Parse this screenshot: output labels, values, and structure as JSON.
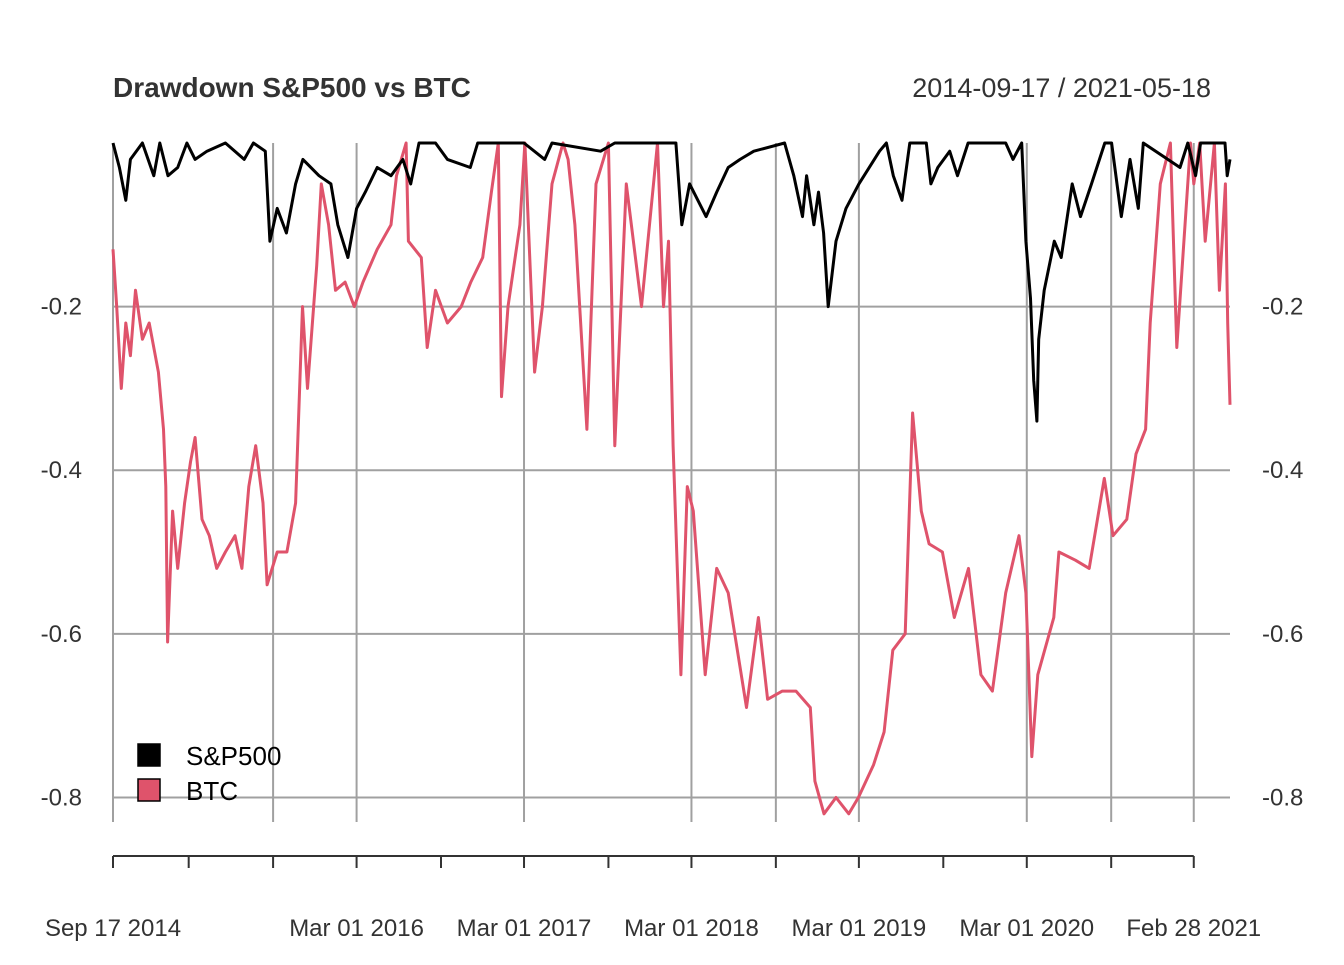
{
  "chart_data": {
    "type": "line",
    "title": "Drawdown S&P500 vs BTC",
    "date_range_label": "2014-09-17 / 2021-05-18",
    "xlabel": "",
    "ylabel": "",
    "x_start": "2014-09-17",
    "x_end": "2021-05-18",
    "ylim": [
      -0.83,
      0.0
    ],
    "grid": true,
    "legend_position": "bottom-left",
    "y_ticks": [
      {
        "value": -0.2,
        "label": "-0.2"
      },
      {
        "value": -0.4,
        "label": "-0.4"
      },
      {
        "value": -0.6,
        "label": "-0.6"
      },
      {
        "value": -0.8,
        "label": "-0.8"
      }
    ],
    "x_tick_marks": [
      "2014-09-17",
      "2015-03-01",
      "2015-09-01",
      "2016-03-01",
      "2016-09-01",
      "2017-03-01",
      "2017-09-01",
      "2018-03-01",
      "2018-09-01",
      "2019-03-01",
      "2019-09-01",
      "2020-03-01",
      "2020-09-01",
      "2021-02-28"
    ],
    "x_gridlines": [
      "2014-09-17",
      "2015-09-01",
      "2016-03-01",
      "2017-03-01",
      "2018-03-01",
      "2018-09-01",
      "2019-03-01",
      "2020-03-01",
      "2020-09-01",
      "2021-02-28"
    ],
    "x_labels": [
      {
        "date": "2014-09-17",
        "label": "Sep 17 2014"
      },
      {
        "date": "2016-03-01",
        "label": "Mar 01 2016"
      },
      {
        "date": "2017-03-01",
        "label": "Mar 01 2017"
      },
      {
        "date": "2018-03-01",
        "label": "Mar 01 2018"
      },
      {
        "date": "2019-03-01",
        "label": "Mar 01 2019"
      },
      {
        "date": "2020-03-01",
        "label": "Mar 01 2020"
      },
      {
        "date": "2021-02-28",
        "label": "Feb 28 2021"
      }
    ],
    "series": [
      {
        "name": "S&P500",
        "color": "#000000",
        "points": [
          [
            "2014-09-17",
            0.0
          ],
          [
            "2014-10-01",
            -0.03
          ],
          [
            "2014-10-15",
            -0.07
          ],
          [
            "2014-10-25",
            -0.02
          ],
          [
            "2014-11-20",
            0.0
          ],
          [
            "2014-12-15",
            -0.04
          ],
          [
            "2014-12-28",
            0.0
          ],
          [
            "2015-01-15",
            -0.04
          ],
          [
            "2015-02-05",
            -0.03
          ],
          [
            "2015-02-25",
            0.0
          ],
          [
            "2015-03-15",
            -0.02
          ],
          [
            "2015-04-10",
            -0.01
          ],
          [
            "2015-05-20",
            0.0
          ],
          [
            "2015-06-30",
            -0.02
          ],
          [
            "2015-07-20",
            0.0
          ],
          [
            "2015-08-15",
            -0.01
          ],
          [
            "2015-08-25",
            -0.12
          ],
          [
            "2015-09-10",
            -0.08
          ],
          [
            "2015-09-30",
            -0.11
          ],
          [
            "2015-10-20",
            -0.05
          ],
          [
            "2015-11-05",
            -0.02
          ],
          [
            "2015-12-10",
            -0.04
          ],
          [
            "2016-01-05",
            -0.05
          ],
          [
            "2016-01-20",
            -0.1
          ],
          [
            "2016-02-11",
            -0.14
          ],
          [
            "2016-03-01",
            -0.08
          ],
          [
            "2016-03-20",
            -0.06
          ],
          [
            "2016-04-15",
            -0.03
          ],
          [
            "2016-05-15",
            -0.04
          ],
          [
            "2016-06-10",
            -0.02
          ],
          [
            "2016-06-27",
            -0.05
          ],
          [
            "2016-07-15",
            0.0
          ],
          [
            "2016-08-20",
            0.0
          ],
          [
            "2016-09-15",
            -0.02
          ],
          [
            "2016-11-04",
            -0.03
          ],
          [
            "2016-11-20",
            0.0
          ],
          [
            "2017-02-01",
            0.0
          ],
          [
            "2017-03-01",
            0.0
          ],
          [
            "2017-04-15",
            -0.02
          ],
          [
            "2017-05-01",
            0.0
          ],
          [
            "2017-08-15",
            -0.01
          ],
          [
            "2017-09-15",
            0.0
          ],
          [
            "2018-01-26",
            0.0
          ],
          [
            "2018-02-08",
            -0.1
          ],
          [
            "2018-02-25",
            -0.05
          ],
          [
            "2018-04-02",
            -0.09
          ],
          [
            "2018-04-25",
            -0.06
          ],
          [
            "2018-05-20",
            -0.03
          ],
          [
            "2018-06-15",
            -0.02
          ],
          [
            "2018-07-15",
            -0.01
          ],
          [
            "2018-09-20",
            0.0
          ],
          [
            "2018-10-10",
            -0.04
          ],
          [
            "2018-10-29",
            -0.09
          ],
          [
            "2018-11-07",
            -0.04
          ],
          [
            "2018-11-23",
            -0.1
          ],
          [
            "2018-12-03",
            -0.06
          ],
          [
            "2018-12-14",
            -0.11
          ],
          [
            "2018-12-24",
            -0.2
          ],
          [
            "2019-01-10",
            -0.12
          ],
          [
            "2019-02-01",
            -0.08
          ],
          [
            "2019-03-01",
            -0.05
          ],
          [
            "2019-04-15",
            -0.01
          ],
          [
            "2019-04-30",
            0.0
          ],
          [
            "2019-05-15",
            -0.04
          ],
          [
            "2019-06-03",
            -0.07
          ],
          [
            "2019-06-20",
            0.0
          ],
          [
            "2019-07-26",
            0.0
          ],
          [
            "2019-08-05",
            -0.05
          ],
          [
            "2019-08-20",
            -0.03
          ],
          [
            "2019-09-15",
            -0.01
          ],
          [
            "2019-10-02",
            -0.04
          ],
          [
            "2019-10-25",
            0.0
          ],
          [
            "2020-01-15",
            0.0
          ],
          [
            "2020-01-31",
            -0.02
          ],
          [
            "2020-02-19",
            0.0
          ],
          [
            "2020-02-28",
            -0.12
          ],
          [
            "2020-03-09",
            -0.19
          ],
          [
            "2020-03-16",
            -0.29
          ],
          [
            "2020-03-23",
            -0.34
          ],
          [
            "2020-03-27",
            -0.24
          ],
          [
            "2020-04-08",
            -0.18
          ],
          [
            "2020-04-30",
            -0.12
          ],
          [
            "2020-05-15",
            -0.14
          ],
          [
            "2020-06-08",
            -0.05
          ],
          [
            "2020-06-26",
            -0.09
          ],
          [
            "2020-07-20",
            -0.05
          ],
          [
            "2020-08-18",
            0.0
          ],
          [
            "2020-09-02",
            0.0
          ],
          [
            "2020-09-23",
            -0.09
          ],
          [
            "2020-10-12",
            -0.02
          ],
          [
            "2020-10-30",
            -0.08
          ],
          [
            "2020-11-10",
            0.0
          ],
          [
            "2021-01-29",
            -0.03
          ],
          [
            "2021-02-15",
            0.0
          ],
          [
            "2021-03-04",
            -0.04
          ],
          [
            "2021-03-15",
            0.0
          ],
          [
            "2021-05-07",
            0.0
          ],
          [
            "2021-05-12",
            -0.04
          ],
          [
            "2021-05-18",
            -0.02
          ]
        ]
      },
      {
        "name": "BTC",
        "color": "#df536b",
        "points": [
          [
            "2014-09-17",
            -0.13
          ],
          [
            "2014-09-25",
            -0.2
          ],
          [
            "2014-10-05",
            -0.3
          ],
          [
            "2014-10-15",
            -0.22
          ],
          [
            "2014-10-25",
            -0.26
          ],
          [
            "2014-11-05",
            -0.18
          ],
          [
            "2014-11-20",
            -0.24
          ],
          [
            "2014-12-05",
            -0.22
          ],
          [
            "2014-12-25",
            -0.28
          ],
          [
            "2015-01-05",
            -0.35
          ],
          [
            "2015-01-10",
            -0.42
          ],
          [
            "2015-01-14",
            -0.61
          ],
          [
            "2015-01-25",
            -0.45
          ],
          [
            "2015-02-05",
            -0.52
          ],
          [
            "2015-02-20",
            -0.44
          ],
          [
            "2015-03-05",
            -0.39
          ],
          [
            "2015-03-15",
            -0.36
          ],
          [
            "2015-03-30",
            -0.46
          ],
          [
            "2015-04-15",
            -0.48
          ],
          [
            "2015-05-01",
            -0.52
          ],
          [
            "2015-05-20",
            -0.5
          ],
          [
            "2015-06-10",
            -0.48
          ],
          [
            "2015-06-25",
            -0.52
          ],
          [
            "2015-07-10",
            -0.42
          ],
          [
            "2015-07-25",
            -0.37
          ],
          [
            "2015-08-10",
            -0.44
          ],
          [
            "2015-08-19",
            -0.54
          ],
          [
            "2015-09-10",
            -0.5
          ],
          [
            "2015-10-01",
            -0.5
          ],
          [
            "2015-10-20",
            -0.44
          ],
          [
            "2015-11-04",
            -0.2
          ],
          [
            "2015-11-15",
            -0.3
          ],
          [
            "2015-12-05",
            -0.15
          ],
          [
            "2015-12-15",
            -0.05
          ],
          [
            "2015-12-31",
            -0.1
          ],
          [
            "2016-01-15",
            -0.18
          ],
          [
            "2016-02-05",
            -0.17
          ],
          [
            "2016-02-25",
            -0.2
          ],
          [
            "2016-03-15",
            -0.17
          ],
          [
            "2016-04-15",
            -0.13
          ],
          [
            "2016-05-15",
            -0.1
          ],
          [
            "2016-05-27",
            -0.04
          ],
          [
            "2016-06-17",
            0.0
          ],
          [
            "2016-06-22",
            -0.12
          ],
          [
            "2016-07-20",
            -0.14
          ],
          [
            "2016-08-02",
            -0.25
          ],
          [
            "2016-08-20",
            -0.18
          ],
          [
            "2016-09-15",
            -0.22
          ],
          [
            "2016-10-15",
            -0.2
          ],
          [
            "2016-11-05",
            -0.17
          ],
          [
            "2016-12-01",
            -0.14
          ],
          [
            "2016-12-20",
            -0.06
          ],
          [
            "2017-01-04",
            0.0
          ],
          [
            "2017-01-11",
            -0.31
          ],
          [
            "2017-01-25",
            -0.2
          ],
          [
            "2017-02-20",
            -0.1
          ],
          [
            "2017-03-03",
            0.0
          ],
          [
            "2017-03-24",
            -0.28
          ],
          [
            "2017-04-10",
            -0.2
          ],
          [
            "2017-05-01",
            -0.05
          ],
          [
            "2017-05-25",
            0.0
          ],
          [
            "2017-06-05",
            -0.02
          ],
          [
            "2017-06-20",
            -0.1
          ],
          [
            "2017-07-16",
            -0.35
          ],
          [
            "2017-08-05",
            -0.05
          ],
          [
            "2017-09-01",
            0.0
          ],
          [
            "2017-09-15",
            -0.37
          ],
          [
            "2017-10-10",
            -0.05
          ],
          [
            "2017-11-12",
            -0.2
          ],
          [
            "2017-12-17",
            0.0
          ],
          [
            "2017-12-30",
            -0.2
          ],
          [
            "2018-01-10",
            -0.12
          ],
          [
            "2018-01-20",
            -0.37
          ],
          [
            "2018-02-06",
            -0.65
          ],
          [
            "2018-02-20",
            -0.42
          ],
          [
            "2018-03-05",
            -0.45
          ],
          [
            "2018-03-31",
            -0.65
          ],
          [
            "2018-04-25",
            -0.52
          ],
          [
            "2018-05-20",
            -0.55
          ],
          [
            "2018-06-29",
            -0.69
          ],
          [
            "2018-07-25",
            -0.58
          ],
          [
            "2018-08-14",
            -0.68
          ],
          [
            "2018-09-15",
            -0.67
          ],
          [
            "2018-10-15",
            -0.67
          ],
          [
            "2018-11-15",
            -0.69
          ],
          [
            "2018-11-25",
            -0.78
          ],
          [
            "2018-12-15",
            -0.82
          ],
          [
            "2019-01-10",
            -0.8
          ],
          [
            "2019-02-07",
            -0.82
          ],
          [
            "2019-02-28",
            -0.8
          ],
          [
            "2019-04-02",
            -0.76
          ],
          [
            "2019-04-25",
            -0.72
          ],
          [
            "2019-05-14",
            -0.62
          ],
          [
            "2019-06-10",
            -0.6
          ],
          [
            "2019-06-26",
            -0.33
          ],
          [
            "2019-07-15",
            -0.45
          ],
          [
            "2019-08-01",
            -0.49
          ],
          [
            "2019-08-30",
            -0.5
          ],
          [
            "2019-09-25",
            -0.58
          ],
          [
            "2019-10-26",
            -0.52
          ],
          [
            "2019-11-22",
            -0.65
          ],
          [
            "2019-12-17",
            -0.67
          ],
          [
            "2020-01-15",
            -0.55
          ],
          [
            "2020-02-13",
            -0.48
          ],
          [
            "2020-02-28",
            -0.55
          ],
          [
            "2020-03-12",
            -0.75
          ],
          [
            "2020-03-25",
            -0.65
          ],
          [
            "2020-04-29",
            -0.58
          ],
          [
            "2020-05-10",
            -0.5
          ],
          [
            "2020-06-15",
            -0.51
          ],
          [
            "2020-07-15",
            -0.52
          ],
          [
            "2020-08-17",
            -0.41
          ],
          [
            "2020-09-05",
            -0.48
          ],
          [
            "2020-10-05",
            -0.46
          ],
          [
            "2020-10-25",
            -0.38
          ],
          [
            "2020-11-15",
            -0.35
          ],
          [
            "2020-11-25",
            -0.22
          ],
          [
            "2020-12-17",
            -0.05
          ],
          [
            "2021-01-08",
            0.0
          ],
          [
            "2021-01-22",
            -0.25
          ],
          [
            "2021-02-21",
            0.0
          ],
          [
            "2021-02-28",
            -0.05
          ],
          [
            "2021-03-13",
            0.0
          ],
          [
            "2021-03-25",
            -0.12
          ],
          [
            "2021-04-14",
            0.0
          ],
          [
            "2021-04-25",
            -0.18
          ],
          [
            "2021-05-08",
            -0.05
          ],
          [
            "2021-05-13",
            -0.22
          ],
          [
            "2021-05-18",
            -0.32
          ]
        ]
      }
    ]
  }
}
